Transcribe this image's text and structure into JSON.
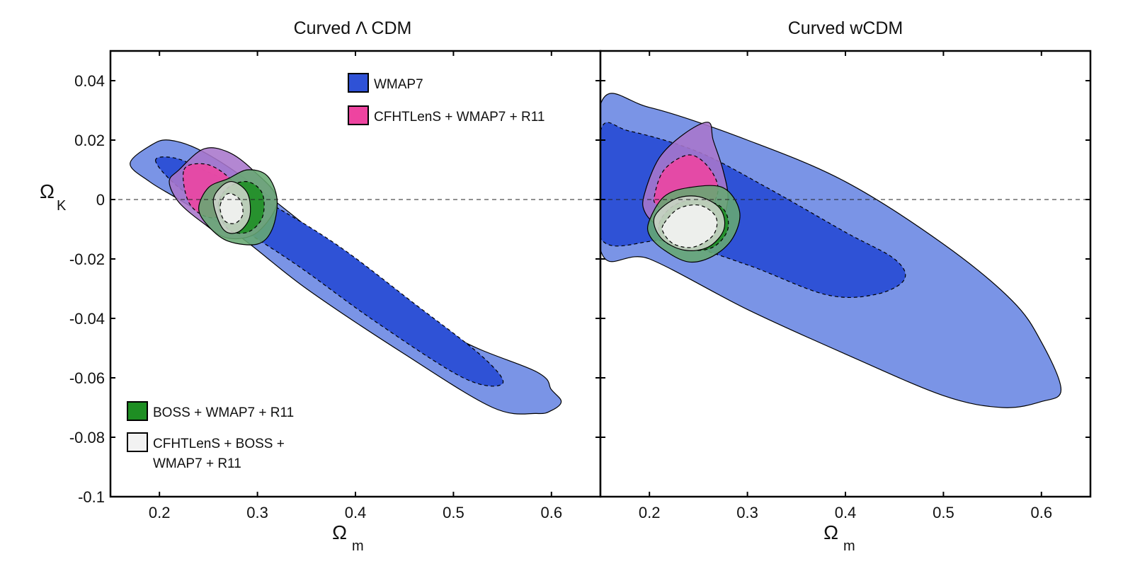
{
  "chart_data": [
    {
      "type": "contour",
      "title": "Curved Λ CDM",
      "xlabel": "Ω",
      "xlabel_sub": "m",
      "ylabel": "Ω",
      "ylabel_sub": "K",
      "xlim": [
        0.15,
        0.65
      ],
      "ylim": [
        -0.1,
        0.05
      ],
      "xticks": [
        0.2,
        0.3,
        0.4,
        0.5,
        0.6
      ],
      "xtick_labels": [
        "0.2",
        "0.3",
        "0.4",
        "0.5",
        "0.6"
      ],
      "yticks": [
        0.04,
        0.02,
        0,
        -0.02,
        -0.04,
        -0.06,
        -0.08,
        -0.1
      ],
      "ytick_labels": [
        "0.04",
        "0.02",
        "0",
        "-0.02",
        "-0.04",
        "-0.06",
        "-0.08",
        "-0.1"
      ],
      "reference_line": 0,
      "legend": [
        {
          "label": "WMAP7",
          "color": "#2f52d6"
        },
        {
          "label": "CFHTLenS + WMAP7 + R11",
          "color": "#ee44a0"
        },
        {
          "label": "BOSS + WMAP7 + R11",
          "color": "#1e8e23"
        },
        {
          "label": "CFHTLenS + BOSS +",
          "label2": "WMAP7 + R11",
          "color": "#f2f2f2"
        }
      ],
      "series": [
        {
          "name": "WMAP7 95%",
          "color": "#7a94e6",
          "points": [
            [
              0.17,
              0.012
            ],
            [
              0.19,
              0.018
            ],
            [
              0.21,
              0.02
            ],
            [
              0.245,
              0.016
            ],
            [
              0.3,
              0.004
            ],
            [
              0.4,
              -0.022
            ],
            [
              0.5,
              -0.046
            ],
            [
              0.585,
              -0.058
            ],
            [
              0.6,
              -0.064
            ],
            [
              0.61,
              -0.068
            ],
            [
              0.6,
              -0.071
            ],
            [
              0.585,
              -0.072
            ],
            [
              0.54,
              -0.07
            ],
            [
              0.45,
              -0.052
            ],
            [
              0.35,
              -0.03
            ],
            [
              0.28,
              -0.012
            ],
            [
              0.22,
              0.0
            ],
            [
              0.19,
              0.006
            ]
          ]
        },
        {
          "name": "WMAP7 68%",
          "color": "#2f52d6",
          "points": [
            [
              0.196,
              0.013
            ],
            [
              0.215,
              0.014
            ],
            [
              0.245,
              0.01
            ],
            [
              0.3,
              0.001
            ],
            [
              0.38,
              -0.015
            ],
            [
              0.46,
              -0.035
            ],
            [
              0.53,
              -0.053
            ],
            [
              0.55,
              -0.062
            ],
            [
              0.51,
              -0.06
            ],
            [
              0.42,
              -0.041
            ],
            [
              0.34,
              -0.022
            ],
            [
              0.27,
              -0.007
            ],
            [
              0.22,
              0.004
            ]
          ]
        },
        {
          "name": "CFHTLenS + WMAP7 + R11 95%",
          "color": "#a876cc",
          "points": [
            [
              0.21,
              0.006
            ],
            [
              0.22,
              0.01
            ],
            [
              0.245,
              0.017
            ],
            [
              0.27,
              0.016
            ],
            [
              0.295,
              0.01
            ],
            [
              0.32,
              0.0
            ],
            [
              0.3,
              -0.011
            ],
            [
              0.27,
              -0.013
            ],
            [
              0.245,
              -0.008
            ],
            [
              0.22,
              -0.001
            ]
          ]
        },
        {
          "name": "CFHTLenS + WMAP7 + R11 68%",
          "color": "#ee44a0",
          "points": [
            [
              0.225,
              0.01
            ],
            [
              0.245,
              0.012
            ],
            [
              0.265,
              0.009
            ],
            [
              0.28,
              0.003
            ],
            [
              0.27,
              -0.004
            ],
            [
              0.25,
              -0.006
            ],
            [
              0.23,
              -0.001
            ]
          ]
        },
        {
          "name": "BOSS + WMAP7 + R11 95%",
          "color": "#67a872",
          "points": [
            [
              0.24,
              -0.003
            ],
            [
              0.25,
              0.004
            ],
            [
              0.27,
              0.007
            ],
            [
              0.29,
              0.01
            ],
            [
              0.31,
              0.008
            ],
            [
              0.32,
              0.0
            ],
            [
              0.315,
              -0.01
            ],
            [
              0.3,
              -0.015
            ],
            [
              0.27,
              -0.014
            ],
            [
              0.25,
              -0.009
            ]
          ]
        },
        {
          "name": "BOSS + WMAP7 + R11 68%",
          "color": "#1e8e23",
          "points": [
            [
              0.26,
              -0.002
            ],
            [
              0.27,
              0.004
            ],
            [
              0.29,
              0.006
            ],
            [
              0.305,
              0.002
            ],
            [
              0.305,
              -0.006
            ],
            [
              0.29,
              -0.011
            ],
            [
              0.27,
              -0.01
            ]
          ]
        },
        {
          "name": "CFHTLenS + BOSS + WMAP7 + R11 95%",
          "color": "#cfd5cc",
          "points": [
            [
              0.255,
              -0.001
            ],
            [
              0.262,
              0.004
            ],
            [
              0.275,
              0.006
            ],
            [
              0.29,
              0.002
            ],
            [
              0.292,
              -0.006
            ],
            [
              0.28,
              -0.011
            ],
            [
              0.265,
              -0.01
            ]
          ]
        },
        {
          "name": "CFHTLenS + BOSS + WMAP7 + R11 68%",
          "color": "#f4f4f2",
          "points": [
            [
              0.262,
              -0.002
            ],
            [
              0.27,
              0.002
            ],
            [
              0.282,
              0.0
            ],
            [
              0.285,
              -0.005
            ],
            [
              0.277,
              -0.008
            ],
            [
              0.266,
              -0.007
            ]
          ]
        }
      ]
    },
    {
      "type": "contour",
      "title": "Curved wCDM",
      "xlabel": "Ω",
      "xlabel_sub": "m",
      "xlim": [
        0.15,
        0.65
      ],
      "ylim": [
        -0.1,
        0.05
      ],
      "xticks": [
        0.2,
        0.3,
        0.4,
        0.5,
        0.6
      ],
      "xtick_labels": [
        "0.2",
        "0.3",
        "0.4",
        "0.5",
        "0.6"
      ],
      "yticks": [
        0.04,
        0.02,
        0,
        -0.02,
        -0.04,
        -0.06,
        -0.08,
        -0.1
      ],
      "reference_line": 0,
      "series": [
        {
          "name": "WMAP7 95%",
          "color": "#7a94e6",
          "points": [
            [
              0.15,
              0.032
            ],
            [
              0.2,
              0.031
            ],
            [
              0.3,
              0.02
            ],
            [
              0.4,
              0.006
            ],
            [
              0.5,
              -0.015
            ],
            [
              0.57,
              -0.034
            ],
            [
              0.6,
              -0.048
            ],
            [
              0.62,
              -0.064
            ],
            [
              0.6,
              -0.068
            ],
            [
              0.56,
              -0.07
            ],
            [
              0.5,
              -0.066
            ],
            [
              0.4,
              -0.052
            ],
            [
              0.3,
              -0.037
            ],
            [
              0.2,
              -0.02
            ],
            [
              0.15,
              -0.017
            ]
          ]
        },
        {
          "name": "WMAP7 68%",
          "color": "#2f52d6",
          "points": [
            [
              0.15,
              0.023
            ],
            [
              0.18,
              0.023
            ],
            [
              0.25,
              0.016
            ],
            [
              0.32,
              0.004
            ],
            [
              0.4,
              -0.011
            ],
            [
              0.45,
              -0.02
            ],
            [
              0.46,
              -0.027
            ],
            [
              0.43,
              -0.032
            ],
            [
              0.38,
              -0.032
            ],
            [
              0.3,
              -0.022
            ],
            [
              0.22,
              -0.014
            ],
            [
              0.15,
              -0.013
            ]
          ]
        },
        {
          "name": "CFHTLenS + WMAP7 + R11 95%",
          "color": "#a876cc",
          "points": [
            [
              0.195,
              0.002
            ],
            [
              0.21,
              0.014
            ],
            [
              0.235,
              0.022
            ],
            [
              0.26,
              0.026
            ],
            [
              0.265,
              0.02
            ],
            [
              0.275,
              0.01
            ],
            [
              0.28,
              0.0
            ],
            [
              0.27,
              -0.008
            ],
            [
              0.24,
              -0.012
            ],
            [
              0.21,
              -0.009
            ],
            [
              0.195,
              -0.004
            ]
          ]
        },
        {
          "name": "CFHTLenS + WMAP7 + R11 68%",
          "color": "#ee44a0",
          "points": [
            [
              0.205,
              0.001
            ],
            [
              0.215,
              0.01
            ],
            [
              0.24,
              0.015
            ],
            [
              0.26,
              0.011
            ],
            [
              0.27,
              0.003
            ],
            [
              0.255,
              -0.005
            ],
            [
              0.225,
              -0.006
            ],
            [
              0.208,
              -0.002
            ]
          ]
        },
        {
          "name": "BOSS + WMAP7 + R11 95%",
          "color": "#67a872",
          "points": [
            [
              0.2,
              -0.007
            ],
            [
              0.215,
              0.001
            ],
            [
              0.24,
              0.004
            ],
            [
              0.275,
              0.004
            ],
            [
              0.292,
              -0.004
            ],
            [
              0.285,
              -0.013
            ],
            [
              0.265,
              -0.019
            ],
            [
              0.24,
              -0.021
            ],
            [
              0.215,
              -0.017
            ],
            [
              0.2,
              -0.012
            ]
          ]
        },
        {
          "name": "BOSS + WMAP7 + R11 68%",
          "color": "#1e8e23",
          "points": [
            [
              0.21,
              -0.008
            ],
            [
              0.225,
              -0.002
            ],
            [
              0.25,
              0.0
            ],
            [
              0.275,
              -0.003
            ],
            [
              0.28,
              -0.01
            ],
            [
              0.265,
              -0.016
            ],
            [
              0.24,
              -0.017
            ],
            [
              0.215,
              -0.014
            ]
          ]
        },
        {
          "name": "CFHTLenS + BOSS + WMAP7 + R11 95%",
          "color": "#cfd5cc",
          "points": [
            [
              0.205,
              -0.006
            ],
            [
              0.225,
              0.0
            ],
            [
              0.25,
              0.001
            ],
            [
              0.272,
              -0.003
            ],
            [
              0.276,
              -0.01
            ],
            [
              0.26,
              -0.016
            ],
            [
              0.235,
              -0.017
            ],
            [
              0.212,
              -0.013
            ]
          ]
        },
        {
          "name": "CFHTLenS + BOSS + WMAP7 + R11 68%",
          "color": "#f4f4f2",
          "points": [
            [
              0.215,
              -0.008
            ],
            [
              0.23,
              -0.003
            ],
            [
              0.252,
              -0.002
            ],
            [
              0.268,
              -0.006
            ],
            [
              0.265,
              -0.012
            ],
            [
              0.245,
              -0.016
            ],
            [
              0.225,
              -0.015
            ],
            [
              0.214,
              -0.011
            ]
          ]
        }
      ]
    }
  ]
}
